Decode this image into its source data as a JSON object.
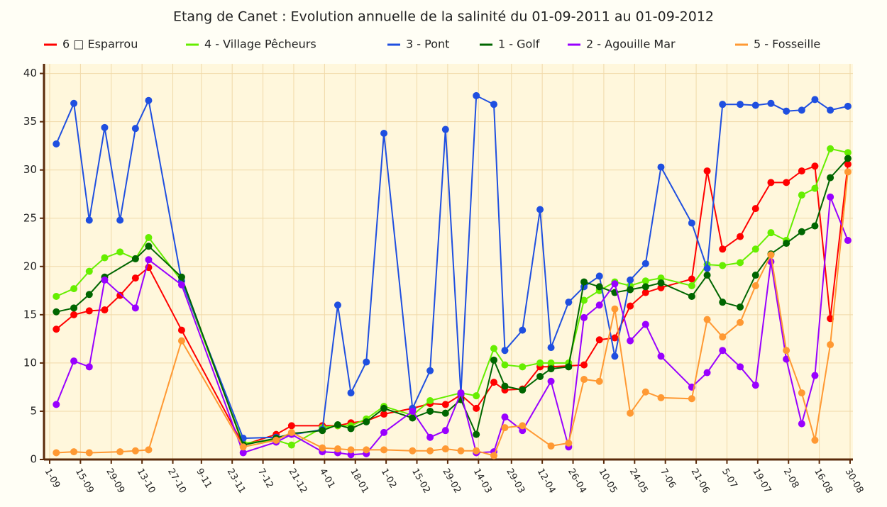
{
  "chart_data": {
    "type": "line",
    "title": "Etang de Canet : Evolution annuelle de la salinité du 01-09-2011 au 01-09-2012",
    "xlim": [
      "1-09",
      "30-08"
    ],
    "xticks": [
      "1-09",
      "15-09",
      "29-09",
      "13-10",
      "27-10",
      "9-11",
      "23-11",
      "7-12",
      "21-12",
      "4-01",
      "18-01",
      "1-02",
      "15-02",
      "29-02",
      "14-03",
      "29-03",
      "12-04",
      "26-04",
      "10-05",
      "24-05",
      "7-06",
      "21-06",
      "5-07",
      "19-07",
      "2-08",
      "16-08",
      "30-08"
    ],
    "ylim": [
      0,
      41
    ],
    "yticks": [
      0,
      5,
      10,
      15,
      20,
      25,
      30,
      35,
      40
    ],
    "grid": true,
    "series": [
      {
        "name": "6 □ Esparrou",
        "color": "#ff0000",
        "x": [
          "4-09",
          "12-09",
          "19-09",
          "26-09",
          "3-10",
          "10-10",
          "16-10",
          "31-10",
          "28-11",
          "13-12",
          "20-12",
          "3-01",
          "10-01",
          "16-01",
          "23-01",
          "31-01",
          "13-02",
          "21-02",
          "28-02",
          "6-03",
          "13-03",
          "21-03",
          "26-03",
          "3-04",
          "11-04",
          "16-04",
          "24-04",
          "1-05",
          "8-05",
          "15-05",
          "22-05",
          "29-05",
          "5-06",
          "19-06",
          "26-06",
          "3-07",
          "11-07",
          "18-07",
          "25-07",
          "1-08",
          "8-08",
          "14-08",
          "21-08",
          "29-08"
        ],
        "values": [
          13.5,
          15.0,
          15.4,
          15.5,
          17.0,
          18.8,
          19.9,
          13.4,
          1.5,
          2.6,
          3.5,
          3.5,
          3.5,
          3.8,
          4.0,
          4.7,
          5.3,
          5.8,
          5.7,
          6.7,
          5.3,
          8.0,
          7.2,
          7.3,
          9.6,
          9.6,
          9.7,
          9.8,
          12.4,
          12.6,
          15.9,
          17.3,
          17.8,
          18.7,
          29.9,
          21.8,
          23.1,
          26.0,
          28.7,
          28.7,
          29.9,
          30.4,
          14.6,
          30.6
        ]
      },
      {
        "name": "4 - Village Pêcheurs",
        "color": "#66ee00",
        "x": [
          "4-09",
          "12-09",
          "19-09",
          "26-09",
          "3-10",
          "10-10",
          "16-10",
          "31-10",
          "28-11",
          "13-12",
          "20-12",
          "3-01",
          "10-01",
          "16-01",
          "23-01",
          "31-01",
          "13-02",
          "21-02",
          "6-03",
          "13-03",
          "21-03",
          "26-03",
          "3-04",
          "11-04",
          "16-04",
          "24-04",
          "1-05",
          "8-05",
          "15-05",
          "22-05",
          "29-05",
          "5-06",
          "19-06",
          "26-06",
          "3-07",
          "11-07",
          "18-07",
          "25-07",
          "1-08",
          "8-08",
          "14-08",
          "21-08",
          "29-08"
        ],
        "values": [
          16.9,
          17.7,
          19.5,
          20.9,
          21.5,
          20.8,
          23.0,
          18.5,
          1.7,
          2.0,
          1.5,
          3.3,
          3.5,
          3.5,
          4.2,
          5.5,
          4.6,
          6.1,
          6.9,
          6.6,
          11.5,
          9.8,
          9.6,
          10.0,
          10.0,
          10.0,
          16.5,
          17.5,
          18.4,
          18.0,
          18.5,
          18.8,
          18.0,
          20.2,
          20.1,
          20.4,
          21.8,
          23.5,
          22.7,
          27.4,
          28.1,
          32.2,
          31.8
        ]
      },
      {
        "name": "3 - Pont",
        "color": "#1f4fe0",
        "x": [
          "4-09",
          "12-09",
          "19-09",
          "26-09",
          "3-10",
          "10-10",
          "16-10",
          "31-10",
          "28-11",
          "13-12",
          "3-01",
          "10-01",
          "16-01",
          "23-01",
          "31-01",
          "13-02",
          "21-02",
          "28-02",
          "6-03",
          "13-03",
          "21-03",
          "26-03",
          "3-04",
          "11-04",
          "16-04",
          "24-04",
          "1-05",
          "8-05",
          "15-05",
          "22-05",
          "29-05",
          "5-06",
          "19-06",
          "26-06",
          "3-07",
          "11-07",
          "18-07",
          "25-07",
          "1-08",
          "8-08",
          "14-08",
          "21-08",
          "29-08"
        ],
        "values": [
          32.7,
          36.9,
          24.8,
          34.4,
          24.8,
          34.3,
          37.2,
          18.5,
          2.2,
          2.3,
          3.1,
          16.0,
          6.9,
          10.1,
          33.8,
          5.3,
          9.2,
          34.2,
          6.8,
          37.7,
          36.8,
          11.3,
          13.4,
          25.9,
          11.6,
          16.3,
          17.9,
          19.0,
          10.7,
          18.6,
          20.3,
          30.3,
          24.5,
          19.8,
          36.8,
          36.8,
          36.7,
          36.9,
          36.1,
          36.2,
          37.3,
          36.2,
          36.6
        ]
      },
      {
        "name": "1 - Golf",
        "color": "#006600",
        "x": [
          "4-09",
          "12-09",
          "19-09",
          "26-09",
          "10-10",
          "16-10",
          "31-10",
          "28-11",
          "13-12",
          "20-12",
          "3-01",
          "10-01",
          "16-01",
          "23-01",
          "31-01",
          "13-02",
          "21-02",
          "28-02",
          "6-03",
          "13-03",
          "21-03",
          "26-03",
          "3-04",
          "11-04",
          "16-04",
          "24-04",
          "1-05",
          "8-05",
          "15-05",
          "22-05",
          "29-05",
          "5-06",
          "19-06",
          "26-06",
          "3-07",
          "11-07",
          "18-07",
          "25-07",
          "1-08",
          "8-08",
          "14-08",
          "21-08",
          "29-08"
        ],
        "values": [
          15.3,
          15.7,
          17.1,
          18.9,
          20.8,
          22.1,
          18.9,
          1.5,
          2.2,
          2.7,
          3.0,
          3.6,
          3.2,
          3.9,
          5.3,
          4.3,
          5.0,
          4.8,
          6.2,
          2.6,
          10.3,
          7.6,
          7.2,
          8.6,
          9.4,
          9.6,
          18.4,
          17.9,
          17.3,
          17.6,
          17.9,
          18.3,
          16.9,
          19.1,
          16.3,
          15.8,
          19.1,
          21.3,
          22.4,
          23.6,
          24.2,
          29.2,
          31.2
        ]
      },
      {
        "name": "2 - Agouille Mar",
        "color": "#9900ff",
        "x": [
          "4-09",
          "12-09",
          "19-09",
          "26-09",
          "10-10",
          "16-10",
          "31-10",
          "28-11",
          "13-12",
          "20-12",
          "3-01",
          "10-01",
          "16-01",
          "23-01",
          "31-01",
          "13-02",
          "21-02",
          "28-02",
          "6-03",
          "13-03",
          "21-03",
          "26-03",
          "3-04",
          "16-04",
          "24-04",
          "1-05",
          "8-05",
          "15-05",
          "22-05",
          "29-05",
          "5-06",
          "19-06",
          "26-06",
          "3-07",
          "11-07",
          "18-07",
          "25-07",
          "1-08",
          "8-08",
          "14-08",
          "21-08",
          "29-08"
        ],
        "values": [
          5.7,
          10.2,
          9.6,
          18.6,
          15.7,
          20.7,
          18.1,
          0.7,
          1.8,
          2.6,
          0.8,
          0.7,
          0.5,
          0.6,
          2.8,
          5.0,
          2.3,
          3.0,
          6.9,
          0.7,
          0.8,
          4.4,
          3.0,
          8.1,
          1.3,
          14.7,
          16.0,
          18.2,
          12.3,
          14.0,
          10.7,
          7.5,
          9.0,
          11.3,
          9.6,
          7.7,
          20.5,
          10.4,
          3.7,
          8.7,
          27.2,
          22.7
        ]
      },
      {
        "name": "5 - Fosseille",
        "color": "#ff9933",
        "x": [
          "4-09",
          "12-09",
          "19-09",
          "3-10",
          "10-10",
          "16-10",
          "31-10",
          "28-11",
          "13-12",
          "20-12",
          "3-01",
          "10-01",
          "16-01",
          "23-01",
          "31-01",
          "13-02",
          "21-02",
          "28-02",
          "6-03",
          "13-03",
          "21-03",
          "26-03",
          "3-04",
          "16-04",
          "24-04",
          "1-05",
          "8-05",
          "15-05",
          "22-05",
          "29-05",
          "5-06",
          "19-06",
          "26-06",
          "3-07",
          "11-07",
          "18-07",
          "25-07",
          "1-08",
          "8-08",
          "14-08",
          "21-08",
          "29-08"
        ],
        "values": [
          0.7,
          0.8,
          0.7,
          0.8,
          0.9,
          1.0,
          12.3,
          1.3,
          2.0,
          2.8,
          1.2,
          1.1,
          1.0,
          1.0,
          1.0,
          0.9,
          0.9,
          1.1,
          0.9,
          0.9,
          0.4,
          3.3,
          3.5,
          1.4,
          1.7,
          8.3,
          8.1,
          15.6,
          4.8,
          7.0,
          6.4,
          6.3,
          14.5,
          12.7,
          14.2,
          18.0,
          21.2,
          11.3,
          6.9,
          2.0,
          11.9,
          29.8
        ]
      }
    ]
  }
}
